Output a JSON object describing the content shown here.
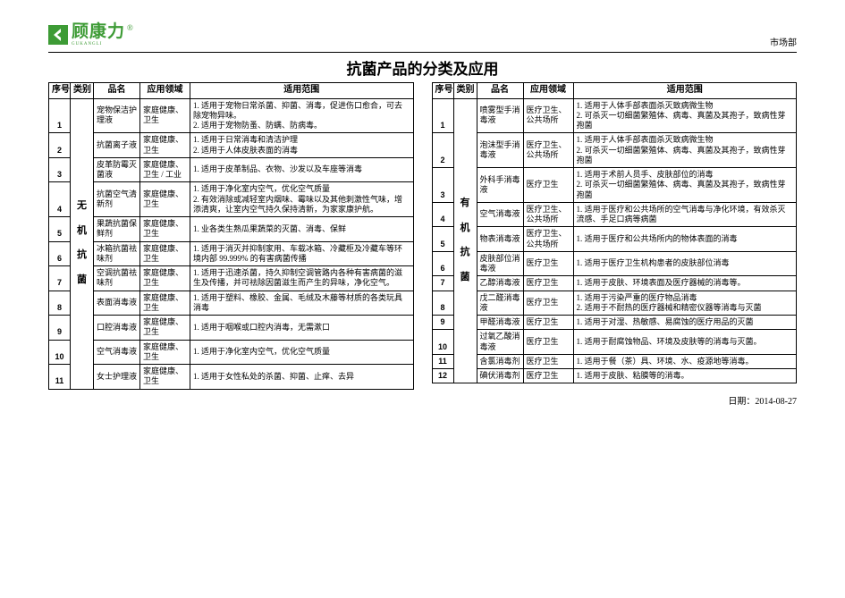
{
  "logo": {
    "text": "顾康力",
    "sub": "GUKANGLI",
    "reg": "®"
  },
  "dept": "市场部",
  "title": "抗菌产品的分类及应用",
  "columns": [
    "序号",
    "类别",
    "品名",
    "应用领域",
    "适用范围"
  ],
  "left": {
    "category": "无    机    抗    菌",
    "rows": [
      {
        "idx": "1",
        "name": "宠物保洁护理液",
        "field": "家庭健康、卫生",
        "scope": "1. 适用于宠物日常杀菌、抑菌、消毒，促进伤口愈合，可去除宠物异味。\n2. 适用于宠物防蚤、防螨、防病毒。"
      },
      {
        "idx": "2",
        "name": "抗菌离子液",
        "field": "家庭健康、卫生",
        "scope": "1. 适用于日常消毒和清洁护理\n2. 适用于人体皮肤表面的消毒"
      },
      {
        "idx": "3",
        "name": "皮革防霉灭菌液",
        "field": "家庭健康、卫生 / 工业",
        "scope": "1. 适用于皮革制品、衣物、沙发以及车座等消毒"
      },
      {
        "idx": "4",
        "name": "抗菌空气清新剂",
        "field": "家庭健康、卫生",
        "scope": "1. 适用于净化室内空气，优化空气质量\n2. 有效消除或减轻室内烟味、霉味以及其他刺激性气味，增添清爽，让室内空气持久保持清新，为家家康护航。"
      },
      {
        "idx": "5",
        "name": "果蔬抗菌保鲜剂",
        "field": "家庭健康、卫生",
        "scope": "1. 业各类生熟瓜果蔬菜的灭菌、消毒、保鲜"
      },
      {
        "idx": "6",
        "name": "冰箱抗菌祛味剂",
        "field": "家庭健康、卫生",
        "scope": "1. 适用于消灭并抑制家用、车载冰箱、冷藏柜及冷藏车等环境内部 99.999% 的有害病菌传播"
      },
      {
        "idx": "7",
        "name": "空调抗菌祛味剂",
        "field": "家庭健康、卫生",
        "scope": "1. 适用于迅速杀菌，持久抑制空调管路内各种有害病菌的滋生及传播，并可祛除因菌滋生而产生的异味，净化空气。"
      },
      {
        "idx": "8",
        "name": "表面消毒液",
        "field": "家庭健康、卫生",
        "scope": "1. 适用于塑料、橡胶、金属、毛绒及木藤等材质的各类玩具消毒"
      },
      {
        "idx": "9",
        "name": "口腔消毒液",
        "field": "家庭健康、卫生",
        "scope": "1. 适用于咽喉或口腔内消毒，无需漱口"
      },
      {
        "idx": "10",
        "name": "空气消毒液",
        "field": "家庭健康、卫生",
        "scope": "1. 适用于净化室内空气，优化空气质量"
      },
      {
        "idx": "11",
        "name": "女士护理液",
        "field": "家庭健康、卫生",
        "scope": "1. 适用于女性私处的杀菌、抑菌、止痒、去异"
      }
    ]
  },
  "right": {
    "category": "有    机    抗    菌",
    "rows": [
      {
        "idx": "1",
        "name": "喷雾型手消毒液",
        "field": "医疗卫生、公共场所",
        "scope": "1. 适用于人体手部表面杀灭致病微生物\n2. 可杀灭一切细菌繁殖体、病毒、真菌及其孢子，致病性芽孢菌"
      },
      {
        "idx": "2",
        "name": "泡沫型手消毒液",
        "field": "医疗卫生、公共场所",
        "scope": "1. 适用于人体手部表面杀灭致病微生物\n2. 可杀灭一切细菌繁殖体、病毒、真菌及其孢子，致病性芽孢菌"
      },
      {
        "idx": "3",
        "name": "外科手消毒液",
        "field": "医疗卫生",
        "scope": "1. 适用于术前人员手、皮肤部位的消毒\n2. 可杀灭一切细菌繁殖体、病毒、真菌及其孢子，致病性芽孢菌"
      },
      {
        "idx": "4",
        "name": "空气消毒液",
        "field": "医疗卫生、公共场所",
        "scope": "1. 适用于医疗和公共场所的空气消毒与净化环境，有效杀灭流感、手足口病等病菌"
      },
      {
        "idx": "5",
        "name": "物表消毒液",
        "field": "医疗卫生、公共场所",
        "scope": "1. 适用于医疗和公共场所内的物体表面的消毒"
      },
      {
        "idx": "6",
        "name": "皮肤部位消毒液",
        "field": "医疗卫生",
        "scope": "1. 适用于医疗卫生机构患者的皮肤部位消毒"
      },
      {
        "idx": "7",
        "name": "乙醇消毒液",
        "field": "医疗卫生",
        "scope": "1. 适用于皮肤、环境表面及医疗器械的消毒等。"
      },
      {
        "idx": "8",
        "name": "戊二醛消毒液",
        "field": "医疗卫生",
        "scope": "1. 适用于污染严重的医疗物品消毒\n2. 适用于不耐热的医疗器械和精密仪器等消毒与灭菌"
      },
      {
        "idx": "9",
        "name": "甲醛消毒液",
        "field": "医疗卫生",
        "scope": "1. 适用于对湿、热敏感、易腐蚀的医疗用品的灭菌"
      },
      {
        "idx": "10",
        "name": "过氧乙酸消毒液",
        "field": "医疗卫生",
        "scope": "1. 适用于耐腐蚀物品、环境及皮肤等的消毒与灭菌。"
      },
      {
        "idx": "11",
        "name": "含氯消毒剂",
        "field": "医疗卫生",
        "scope": "1. 适用于餐（茶）具、环境、水、疫源地等消毒。"
      },
      {
        "idx": "12",
        "name": "碘伏消毒剂",
        "field": "医疗卫生",
        "scope": "1. 适用于皮肤、粘膜等的消毒。"
      }
    ]
  },
  "footer": {
    "label": "日期：",
    "date": "2014-08-27"
  }
}
